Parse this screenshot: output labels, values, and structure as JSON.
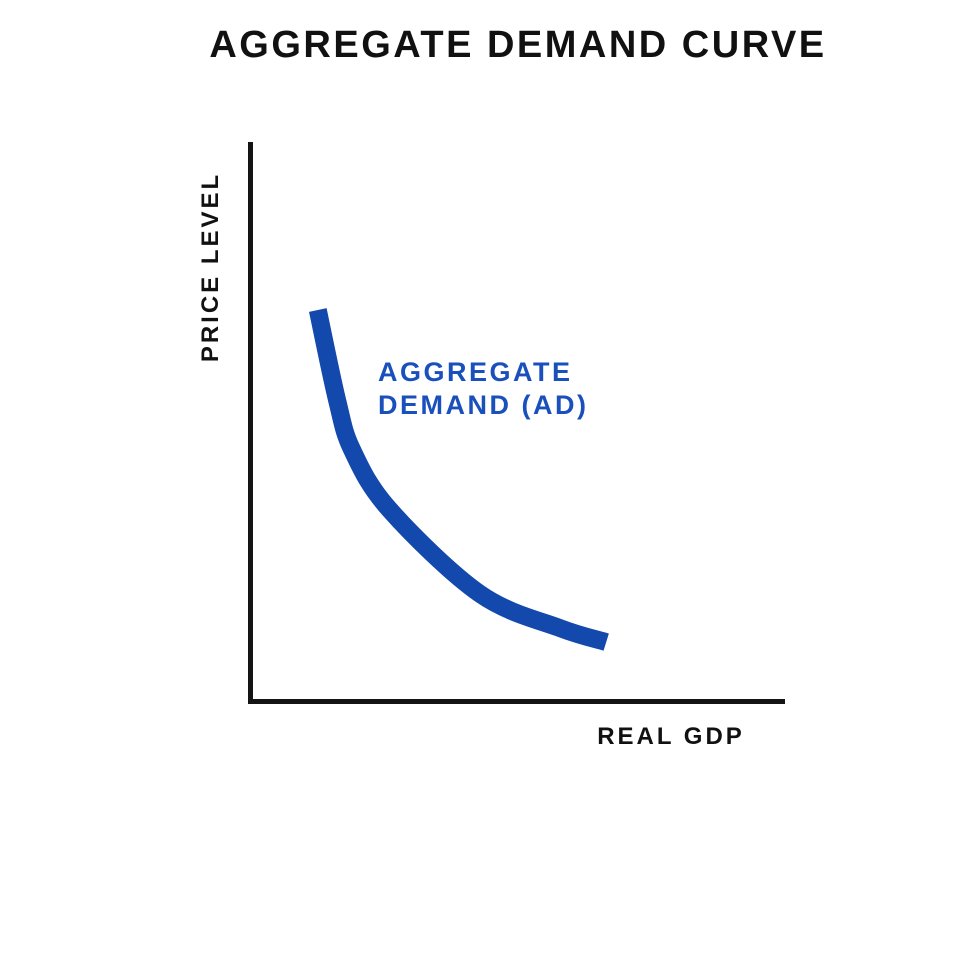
{
  "page": {
    "background": "#ffffff"
  },
  "header": {
    "title": "AGGREGATE DEMAND CURVE",
    "title_color": "#111111"
  },
  "axes": {
    "y_label": "PRICE LEVEL",
    "x_label": "REAL GDP",
    "line_color": "#141414",
    "label_color": "#111111"
  },
  "curve": {
    "label_line1": "AGGREGATE",
    "label_line2": "DEMAND (AD)",
    "label_color": "#1a50bc",
    "stroke_color": "#1349ad",
    "stroke_width": "18"
  },
  "chart_data": {
    "type": "line",
    "title": "AGGREGATE DEMAND CURVE",
    "xlabel": "REAL GDP",
    "ylabel": "PRICE LEVEL",
    "grid": false,
    "legend": "none",
    "axis_numeric_ticks": false,
    "annotations": [
      "AGGREGATE DEMAND (AD)"
    ],
    "series": [
      {
        "name": "AGGREGATE DEMAND (AD)",
        "color": "#1349ad",
        "shape": "downward-sloping convex curve (inverse relationship: price level vs real GDP)",
        "points_norm_xy": [
          [
            0.13,
            0.7
          ],
          [
            0.166,
            0.539
          ],
          [
            0.194,
            0.45
          ],
          [
            0.264,
            0.343
          ],
          [
            0.432,
            0.193
          ],
          [
            0.581,
            0.132
          ],
          [
            0.667,
            0.107
          ]
        ]
      }
    ]
  }
}
